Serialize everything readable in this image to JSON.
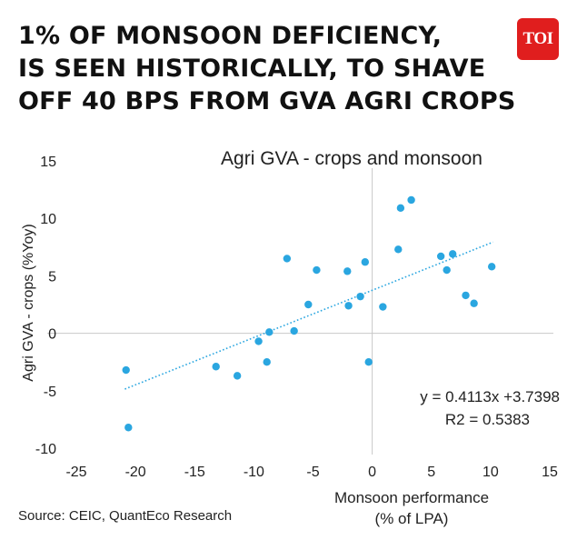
{
  "headline": {
    "lines": [
      "1% OF MONSOON DEFICIENCY,",
      "IS SEEN HISTORICALLY, TO SHAVE",
      "OFF 40 BPS FROM GVA AGRI CROPS"
    ]
  },
  "logo": {
    "text": "TOI",
    "color": "#e01e1e"
  },
  "source": "Source: CEIC, QuantEco Research",
  "chart_data": {
    "type": "scatter",
    "title": "Agri GVA - crops and monsoon",
    "xlabel_lines": [
      "Monsoon performance",
      "(% of LPA)"
    ],
    "ylabel": "Agri GVA - crops (%Yoy)",
    "xlim": [
      -25,
      15
    ],
    "ylim": [
      -10,
      15
    ],
    "x_ticks": [
      "-25",
      "-20",
      "-15",
      "-10",
      "-5",
      "0",
      "5",
      "10",
      "15"
    ],
    "y_ticks": [
      "15",
      "10",
      "5",
      "0",
      "-5",
      "-10"
    ],
    "grid": false,
    "point_color": "#2aa6e0",
    "trendline": {
      "slope": 0.4113,
      "intercept": 3.7398,
      "x_range": [
        -20.9,
        10.2
      ],
      "equation": "y = 0.4113x +3.7398",
      "r2": "R2 = 0.5383"
    },
    "points": [
      {
        "x": -20.8,
        "y": -3.2
      },
      {
        "x": -20.6,
        "y": -8.2
      },
      {
        "x": -13.2,
        "y": -2.9
      },
      {
        "x": -11.4,
        "y": -3.7
      },
      {
        "x": -9.6,
        "y": -0.7
      },
      {
        "x": -8.7,
        "y": 0.1
      },
      {
        "x": -8.9,
        "y": -2.5
      },
      {
        "x": -7.2,
        "y": 6.5
      },
      {
        "x": -6.6,
        "y": 0.2
      },
      {
        "x": -5.4,
        "y": 2.5
      },
      {
        "x": -4.7,
        "y": 5.5
      },
      {
        "x": -2.1,
        "y": 5.4
      },
      {
        "x": -2.0,
        "y": 2.4
      },
      {
        "x": -1.0,
        "y": 3.2
      },
      {
        "x": -0.6,
        "y": 6.2
      },
      {
        "x": -0.3,
        "y": -2.5
      },
      {
        "x": 0.9,
        "y": 2.3
      },
      {
        "x": 2.2,
        "y": 7.3
      },
      {
        "x": 2.4,
        "y": 10.9
      },
      {
        "x": 3.3,
        "y": 11.6
      },
      {
        "x": 5.8,
        "y": 6.7
      },
      {
        "x": 6.3,
        "y": 5.5
      },
      {
        "x": 6.8,
        "y": 6.9
      },
      {
        "x": 7.9,
        "y": 3.3
      },
      {
        "x": 8.6,
        "y": 2.6
      },
      {
        "x": 10.1,
        "y": 5.8
      }
    ]
  }
}
